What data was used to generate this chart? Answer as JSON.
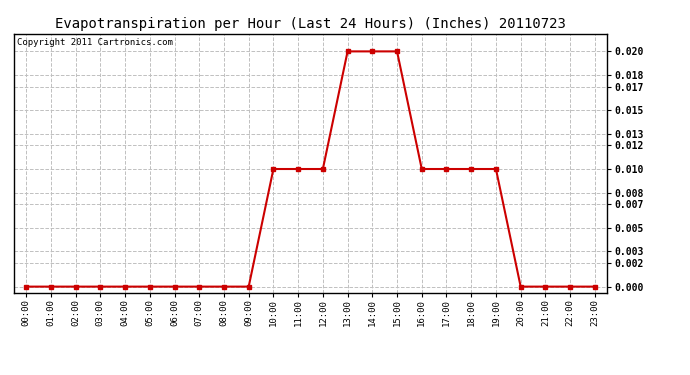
{
  "title": "Evapotranspiration per Hour (Last 24 Hours) (Inches) 20110723",
  "copyright": "Copyright 2011 Cartronics.com",
  "hours": [
    "00:00",
    "01:00",
    "02:00",
    "03:00",
    "04:00",
    "05:00",
    "06:00",
    "07:00",
    "08:00",
    "09:00",
    "10:00",
    "11:00",
    "12:00",
    "13:00",
    "14:00",
    "15:00",
    "16:00",
    "17:00",
    "18:00",
    "19:00",
    "20:00",
    "21:00",
    "22:00",
    "23:00"
  ],
  "values": [
    0.0,
    0.0,
    0.0,
    0.0,
    0.0,
    0.0,
    0.0,
    0.0,
    0.0,
    0.0,
    0.01,
    0.01,
    0.01,
    0.02,
    0.02,
    0.02,
    0.01,
    0.01,
    0.01,
    0.01,
    0.0,
    0.0,
    0.0,
    0.0
  ],
  "line_color": "#cc0000",
  "marker": "s",
  "marker_size": 2.5,
  "bg_color": "#ffffff",
  "plot_bg_color": "#ffffff",
  "grid_color": "#c0c0c0",
  "ylim": [
    -0.0005,
    0.0215
  ],
  "yticks": [
    0.0,
    0.002,
    0.003,
    0.005,
    0.007,
    0.008,
    0.01,
    0.012,
    0.013,
    0.015,
    0.017,
    0.018,
    0.02
  ],
  "title_fontsize": 10,
  "copyright_fontsize": 6.5
}
